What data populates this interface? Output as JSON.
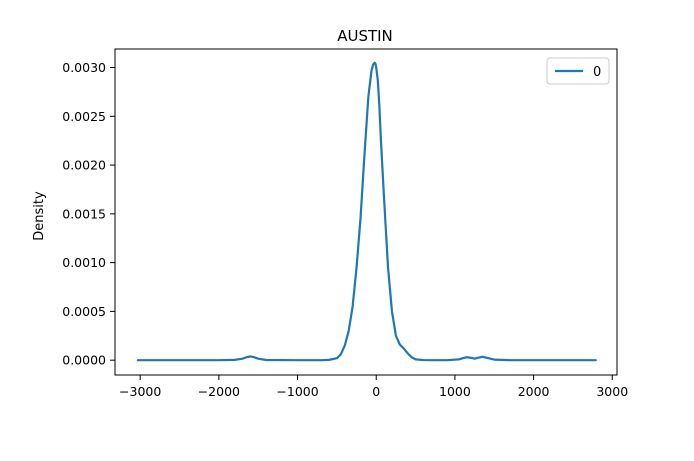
{
  "chart_data": {
    "type": "line",
    "title": "AUSTIN",
    "xlabel": "",
    "ylabel": "Density",
    "xlim": [
      -3320,
      3060
    ],
    "ylim": [
      -0.000152,
      0.00319
    ],
    "xticks": [
      -3000,
      -2000,
      -1000,
      0,
      1000,
      2000,
      3000
    ],
    "xtick_labels": [
      "−3000",
      "−2000",
      "−1000",
      "0",
      "1000",
      "2000",
      "3000"
    ],
    "yticks": [
      0.0,
      0.0005,
      0.001,
      0.0015,
      0.002,
      0.0025,
      0.003
    ],
    "ytick_labels": [
      "0.0000",
      "0.0005",
      "0.0010",
      "0.0015",
      "0.0020",
      "0.0025",
      "0.0030"
    ],
    "grid": false,
    "legend_position": "top-right",
    "series": [
      {
        "name": "0",
        "color": "#1f77b4",
        "x": [
          -3030,
          -2500,
          -2000,
          -1800,
          -1700,
          -1650,
          -1600,
          -1550,
          -1500,
          -1400,
          -1000,
          -700,
          -600,
          -500,
          -450,
          -400,
          -350,
          -300,
          -250,
          -200,
          -150,
          -100,
          -60,
          -40,
          -20,
          -10,
          0,
          20,
          40,
          60,
          100,
          150,
          200,
          250,
          300,
          350,
          400,
          450,
          500,
          600,
          700,
          900,
          1050,
          1100,
          1150,
          1200,
          1250,
          1300,
          1350,
          1400,
          1500,
          1700,
          2000,
          2500,
          2790
        ],
        "y": [
          0.0,
          0.0,
          0.0,
          3e-06,
          1.5e-05,
          3e-05,
          3.8e-05,
          3e-05,
          1.5e-05,
          2e-06,
          0.0,
          0.0,
          3e-06,
          2e-05,
          6e-05,
          0.00015,
          0.0003,
          0.00055,
          0.00095,
          0.00145,
          0.0021,
          0.0027,
          0.00297,
          0.00303,
          0.00305,
          0.00304,
          0.003,
          0.00287,
          0.0026,
          0.00225,
          0.00165,
          0.00095,
          0.0005,
          0.00025,
          0.00016,
          0.00012,
          7e-05,
          3e-05,
          8e-06,
          1e-06,
          0.0,
          0.0,
          8e-06,
          2e-05,
          3e-05,
          2.5e-05,
          1.5e-05,
          2.5e-05,
          3.5e-05,
          2.5e-05,
          6e-06,
          0.0,
          0.0,
          0.0,
          0.0
        ]
      }
    ]
  }
}
